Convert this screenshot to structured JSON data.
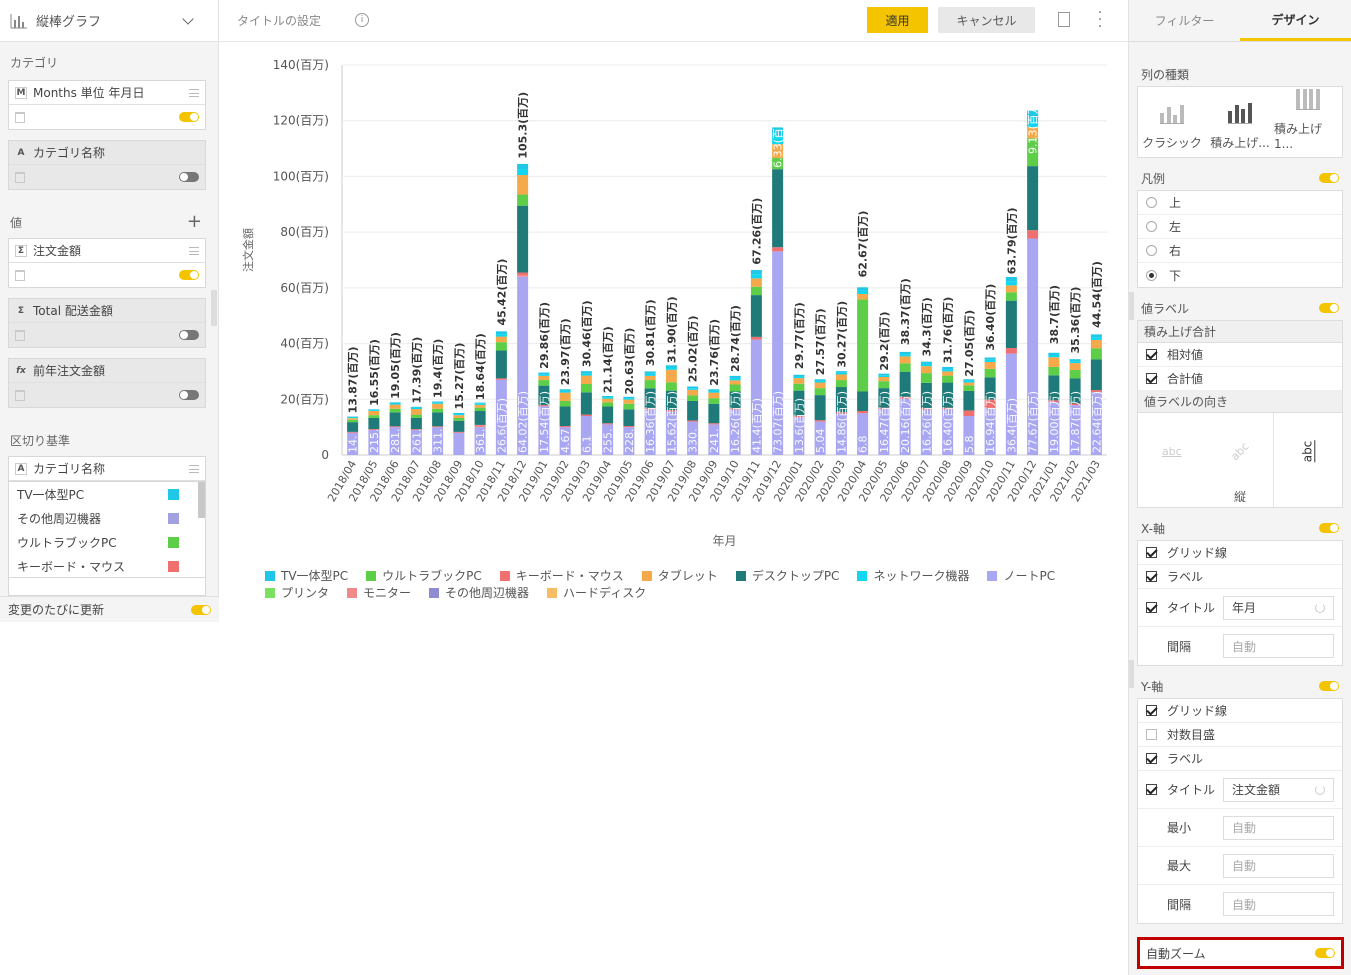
{
  "left_panel": {
    "chart_type": "縦棒グラフ",
    "category_title": "カテゴリ",
    "category_field": {
      "type": "M",
      "name": "Months 単位 年月日"
    },
    "category_name_field": {
      "type": "A",
      "name": "カテゴリ名称"
    },
    "values_title": "値",
    "value_fields": [
      {
        "type": "Σ",
        "name": "注文金額",
        "active": true
      },
      {
        "type": "Σ",
        "name": "Total 配送金額",
        "active": false
      },
      {
        "type": "fx",
        "name": "前年注文金額",
        "active": false
      }
    ],
    "breakdown_title": "区切り基準",
    "breakdown_field": {
      "type": "A",
      "name": "カテゴリ名称"
    },
    "breakdown_items": [
      {
        "label": "TV一体型PC",
        "color": "#1ec8e6"
      },
      {
        "label": "その他周辺機器",
        "color": "#a3a0e0"
      },
      {
        "label": "ウルトラブックPC",
        "color": "#5cce47"
      },
      {
        "label": "キーボード・マウス",
        "color": "#f07070"
      }
    ],
    "auto_update_label": "変更のたびに更新"
  },
  "topbar": {
    "title_placeholder": "タイトルの設定",
    "apply_label": "適用",
    "cancel_label": "キャンセル"
  },
  "chart_data": {
    "type": "bar",
    "stacked": true,
    "ylabel": "注文金額",
    "xlabel": "年月",
    "ylim": [
      0,
      140
    ],
    "y_ticks": [
      "0",
      "20(百万)",
      "40(百万)",
      "60(百万)",
      "80(百万)",
      "100(百万)",
      "120(百万)",
      "140(百万)"
    ],
    "categories": [
      "2018/04",
      "2018/05",
      "2018/06",
      "2018/07",
      "2018/08",
      "2018/09",
      "2018/10",
      "2018/11",
      "2018/12",
      "2019/01",
      "2019/02",
      "2019/03",
      "2019/04",
      "2019/05",
      "2019/06",
      "2019/07",
      "2019/08",
      "2019/09",
      "2019/10",
      "2019/11",
      "2019/12",
      "2020/01",
      "2020/02",
      "2020/03",
      "2020/04",
      "2020/05",
      "2020/06",
      "2020/07",
      "2020/08",
      "2020/09",
      "2020/10",
      "2020/11",
      "2020/12",
      "2021/01",
      "2021/02",
      "2021/03"
    ],
    "totals": [
      13.87,
      16.55,
      19.05,
      17.39,
      19.4,
      15.27,
      18.64,
      45.42,
      105.3,
      29.86,
      23.97,
      30.46,
      21.14,
      20.63,
      30.81,
      31.9,
      25.02,
      23.76,
      28.74,
      67.26,
      121.0,
      29.77,
      27.57,
      30.27,
      62.67,
      29.2,
      38.37,
      34.3,
      31.76,
      27.05,
      36.4,
      63.79,
      126.0,
      38.7,
      35.36,
      44.54
    ],
    "total_labels": [
      "13.87(百万)",
      "16.55(百万)",
      "19.05(百万)",
      "17.39(百万)",
      "19.4(百万)",
      "15.27(百万)",
      "18.64(百万)",
      "45.42(百万)",
      "105.3(百万)",
      "29.86(百万)",
      "23.97(百万)",
      "30.46(百万)",
      "21.14(百万)",
      "20.63(百万)",
      "30.81(百万)",
      "31.90(百万)",
      "25.02(百万)",
      "23.76(百万)",
      "28.74(百万)",
      "67.26(百万)",
      "",
      "29.77(百万)",
      "27.57(百万)",
      "30.27(百万)",
      "62.67(百万)",
      "29.2(百万)",
      "38.37(百万)",
      "34.3(百万)",
      "31.76(百万)",
      "27.05(百万)",
      "36.40(百万)",
      "63.79(百万)",
      "",
      "38.7(百万)",
      "35.36(百万)",
      "44.54(百万)"
    ],
    "inner_labels": [
      "14.",
      "215.",
      "281.",
      "261.",
      "311.",
      "",
      "361.",
      "26.6(百万)",
      "64.02(百万)",
      "17.54(百万)",
      "4.67",
      "6.1",
      "255.",
      "228.",
      "16.36(百万)",
      "15.62(百万)",
      "330.",
      "241.",
      "16.26(百万)",
      "41.4(百万)",
      "73.07(百万)",
      "13.6(百万)",
      "5.04",
      "14.86(百万)",
      "6.8",
      "16.47(百万)",
      "20.16(百万)",
      "16.26(百万)",
      "16.40(百万)",
      "5.8",
      "16.94(百万)",
      "36.4(百万)",
      "77.67(百万)",
      "19.00(百万)",
      "17.87(百万)",
      "22.64(百万)"
    ],
    "series": [
      {
        "name": "ノートPC",
        "color": "#a9a7f2",
        "values": [
          8,
          9,
          10,
          9,
          10,
          8,
          10,
          27,
          64,
          17.5,
          10,
          14,
          11,
          10,
          16.4,
          15.6,
          12,
          11,
          16.3,
          41.4,
          73.1,
          13.6,
          12,
          14.9,
          15,
          16.5,
          20.2,
          16.3,
          16.4,
          14,
          16.9,
          36.4,
          77.7,
          19,
          17.9,
          22.6
        ]
      },
      {
        "name": "モニター",
        "color": "#f08a8a",
        "values": [
          0,
          0,
          0,
          0,
          0,
          0,
          0.5,
          0,
          0.5,
          0,
          0,
          0,
          0,
          0,
          0,
          0,
          0,
          0,
          0,
          0,
          0,
          0,
          0,
          0,
          0,
          0,
          0,
          0,
          0,
          0,
          0,
          0,
          0,
          0,
          0,
          0
        ]
      },
      {
        "name": "キーボード・マウス",
        "color": "#f07070",
        "values": [
          0.3,
          0.3,
          0.3,
          0.3,
          0.3,
          0.3,
          0.3,
          0.5,
          1,
          0.4,
          0.4,
          0.5,
          0.4,
          0.4,
          0.5,
          0.5,
          0.4,
          0.4,
          0.5,
          1,
          1.5,
          0.5,
          0.5,
          0.5,
          0.8,
          0.5,
          0.7,
          0.6,
          0.6,
          2,
          3,
          2,
          3,
          0.6,
          0.6,
          0.7
        ]
      },
      {
        "name": "デスクトップPC",
        "color": "#1f7a7a",
        "values": [
          3.5,
          4,
          5,
          4,
          5,
          4,
          5,
          10,
          24,
          7,
          7,
          8,
          6,
          6,
          7,
          7,
          7,
          7,
          6,
          15,
          28,
          9,
          9,
          9,
          7,
          7,
          9,
          9,
          9,
          7,
          8,
          17,
          23,
          9,
          9,
          11
        ]
      },
      {
        "name": "ウルトラブックPC",
        "color": "#5cce47",
        "values": [
          0.8,
          1,
          1.3,
          1.2,
          1.3,
          1,
          1.2,
          3,
          4,
          2,
          2,
          3,
          1.5,
          2,
          3,
          3,
          2,
          2,
          2.5,
          3,
          4,
          2.5,
          2.5,
          2.5,
          33,
          2.5,
          3,
          3.5,
          2.5,
          2,
          3,
          3,
          10,
          3,
          3,
          4
        ]
      },
      {
        "name": "タブレット",
        "color": "#f5a94a",
        "values": [
          0.6,
          1.5,
          1.5,
          2,
          1.8,
          1,
          1,
          2,
          7,
          1.5,
          3,
          3,
          1.3,
          1.5,
          1.5,
          4.5,
          2,
          2,
          1.5,
          3,
          5,
          2,
          2,
          2,
          2,
          1.5,
          2.5,
          2.5,
          1.5,
          1,
          2.5,
          2.5,
          4,
          3.5,
          2.5,
          3
        ]
      },
      {
        "name": "ネットワーク機器",
        "color": "#10d6ef",
        "values": [
          0.3,
          0.3,
          0.4,
          0.4,
          0.4,
          0.4,
          0.4,
          0.9,
          2,
          0.6,
          0.6,
          0.8,
          0.5,
          0.5,
          0.8,
          0.8,
          0.6,
          0.6,
          0.8,
          1.5,
          3,
          0.6,
          0.6,
          0.6,
          1.2,
          0.6,
          0.8,
          0.8,
          0.8,
          0.6,
          0.8,
          1.5,
          3,
          0.8,
          0.7,
          1
        ]
      },
      {
        "name": "TV一体型PC",
        "color": "#1ec8e6",
        "values": [
          0.3,
          0.3,
          0.4,
          0.4,
          0.4,
          0.4,
          0.4,
          1,
          2,
          0.6,
          0.6,
          0.8,
          0.5,
          0.5,
          0.8,
          0.8,
          0.6,
          0.6,
          0.8,
          1.5,
          3,
          0.6,
          0.6,
          0.6,
          1.2,
          0.6,
          0.8,
          0.8,
          0.8,
          0.6,
          0.8,
          1.5,
          3,
          0.8,
          0.7,
          1
        ]
      },
      {
        "name": "プリンタ",
        "color": "#7be060",
        "values": [
          0,
          0,
          0,
          0,
          0,
          0,
          0,
          0,
          0,
          0,
          0,
          0,
          0,
          0,
          0,
          0,
          0,
          0,
          0,
          0,
          0,
          0,
          0,
          0,
          0,
          0,
          0,
          0,
          0,
          0,
          0,
          0,
          0,
          0,
          0,
          0
        ]
      },
      {
        "name": "その他周辺機器",
        "color": "#8f8bd0",
        "values": [
          0,
          0,
          0,
          0,
          0,
          0,
          0,
          0,
          0,
          0,
          0,
          0,
          0,
          0,
          0,
          0,
          0,
          0,
          0,
          0,
          0,
          0,
          0,
          0,
          0,
          0,
          0,
          0,
          0,
          0,
          0,
          0,
          0,
          0,
          0,
          0
        ]
      },
      {
        "name": "ハードディスク",
        "color": "#f8bd64",
        "values": [
          0,
          0,
          0,
          0,
          0,
          0,
          0,
          0,
          0,
          0,
          0,
          0,
          0,
          0,
          0,
          0,
          0,
          0,
          0,
          0,
          0,
          0,
          0,
          0,
          0,
          0,
          0,
          0,
          0,
          0,
          0,
          0,
          0,
          0,
          0,
          0
        ]
      }
    ],
    "legend_order": [
      "TV一体型PC",
      "ウルトラブックPC",
      "キーボード・マウス",
      "タブレット",
      "デスクトップPC",
      "ネットワーク機器",
      "ノートPC",
      "プリンタ",
      "モニター",
      "その他周辺機器",
      "ハードディスク"
    ],
    "legend_colors": [
      "#1ec8e6",
      "#5cce47",
      "#f07070",
      "#f5a94a",
      "#1f7a7a",
      "#10d6ef",
      "#a9a7f2",
      "#7be060",
      "#f08a8a",
      "#8f8bd0",
      "#f8bd64"
    ],
    "top_segment_labels": [
      {
        "index": 20,
        "text": "6.33(百万)"
      },
      {
        "index": 32,
        "text": "9.13(百万)"
      }
    ],
    "legend_placement": "bottom",
    "grid": true
  },
  "right_panel": {
    "tabs": [
      {
        "label": "フィルター"
      },
      {
        "label": "デザイン",
        "active": true
      }
    ],
    "column_type_title": "列の種類",
    "column_types": [
      {
        "label": "クラシック"
      },
      {
        "label": "積み上げ..."
      },
      {
        "label": "積み上げ 1..."
      }
    ],
    "legend_title": "凡例",
    "legend_positions": [
      {
        "label": "上"
      },
      {
        "label": "左"
      },
      {
        "label": "右"
      },
      {
        "label": "下",
        "selected": true
      }
    ],
    "value_label_title": "値ラベル",
    "stack_total_title": "積み上げ合計",
    "relative_label": "相対値",
    "total_label": "合計値",
    "label_direction_title": "値ラベルの向き",
    "direction_sample": "abc",
    "direction_selected": "縦",
    "x_axis_title": "X-軸",
    "x_grid": "グリッド線",
    "x_label": "ラベル",
    "x_title_label": "タイトル",
    "x_title_value": "年月",
    "x_interval_label": "間隔",
    "auto_placeholder": "自動",
    "y_axis_title": "Y-軸",
    "y_grid": "グリッド線",
    "y_log": "対数目盛",
    "y_label": "ラベル",
    "y_title_label": "タイトル",
    "y_title_value": "注文金額",
    "y_min_label": "最小",
    "y_max_label": "最大",
    "y_interval_label": "間隔",
    "auto_zoom_label": "自動ズーム"
  }
}
